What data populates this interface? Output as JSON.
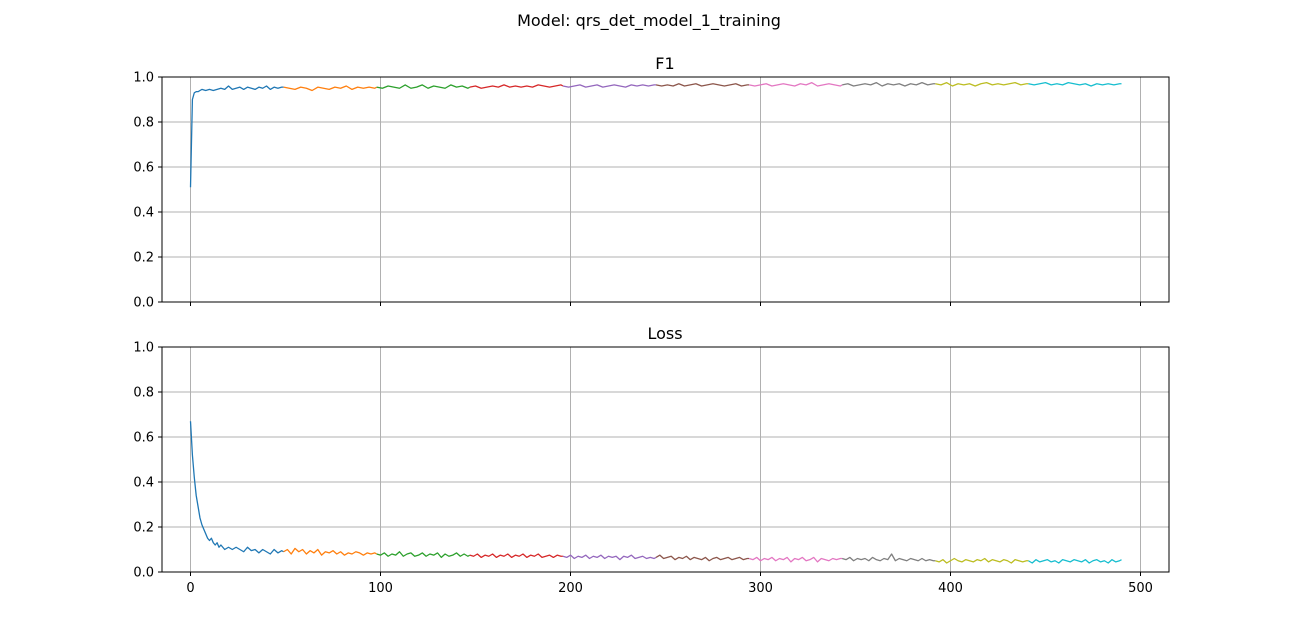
{
  "figure_title": "Model: qrs_det_model_1_training",
  "colors": [
    "#1f77b4",
    "#ff7f0e",
    "#2ca02c",
    "#d62728",
    "#9467bd",
    "#8c564b",
    "#e377c2",
    "#7f7f7f",
    "#bcbd22",
    "#17becf"
  ],
  "chart_data": [
    {
      "type": "line",
      "title": "F1",
      "xlabel": "",
      "ylabel": "",
      "xlim": [
        -15,
        515
      ],
      "ylim": [
        0,
        1
      ],
      "xticks": [
        0,
        100,
        200,
        300,
        400,
        500
      ],
      "yticks": [
        0.0,
        0.2,
        0.4,
        0.6,
        0.8,
        1.0
      ],
      "xtick_labels": [
        "",
        "",
        "",
        "",
        "",
        ""
      ],
      "ytick_labels": [
        "0.0",
        "0.2",
        "0.4",
        "0.6",
        "0.8",
        "1.0"
      ],
      "grid": true,
      "series": [
        {
          "x": [
            0,
            1,
            2,
            3,
            4,
            5,
            6,
            8,
            10,
            12,
            14,
            16,
            18,
            20,
            22,
            24,
            26,
            28,
            30,
            32,
            34,
            36,
            38,
            40,
            42,
            44,
            46,
            48,
            49
          ],
          "values": [
            0.51,
            0.9,
            0.93,
            0.935,
            0.935,
            0.94,
            0.945,
            0.94,
            0.945,
            0.94,
            0.945,
            0.95,
            0.945,
            0.96,
            0.945,
            0.95,
            0.955,
            0.945,
            0.955,
            0.95,
            0.945,
            0.955,
            0.95,
            0.96,
            0.945,
            0.955,
            0.95,
            0.955,
            0.955
          ]
        },
        {
          "x": [
            49,
            52,
            55,
            58,
            61,
            64,
            67,
            70,
            73,
            76,
            79,
            82,
            85,
            88,
            91,
            94,
            97,
            98
          ],
          "values": [
            0.955,
            0.95,
            0.945,
            0.955,
            0.95,
            0.94,
            0.955,
            0.95,
            0.945,
            0.955,
            0.95,
            0.96,
            0.945,
            0.955,
            0.95,
            0.955,
            0.95,
            0.955
          ]
        },
        {
          "x": [
            98,
            101,
            104,
            107,
            110,
            113,
            116,
            119,
            122,
            125,
            128,
            131,
            134,
            137,
            140,
            143,
            146,
            147
          ],
          "values": [
            0.955,
            0.95,
            0.96,
            0.955,
            0.95,
            0.965,
            0.95,
            0.955,
            0.965,
            0.95,
            0.96,
            0.955,
            0.95,
            0.965,
            0.955,
            0.96,
            0.95,
            0.955
          ]
        },
        {
          "x": [
            147,
            150,
            153,
            156,
            159,
            162,
            165,
            168,
            171,
            174,
            177,
            180,
            183,
            186,
            189,
            192,
            195,
            196
          ],
          "values": [
            0.955,
            0.96,
            0.95,
            0.955,
            0.96,
            0.955,
            0.965,
            0.955,
            0.96,
            0.955,
            0.96,
            0.955,
            0.965,
            0.96,
            0.955,
            0.96,
            0.965,
            0.96
          ]
        },
        {
          "x": [
            196,
            199,
            202,
            205,
            208,
            211,
            214,
            217,
            220,
            223,
            226,
            229,
            232,
            235,
            238,
            241,
            244,
            245
          ],
          "values": [
            0.96,
            0.955,
            0.96,
            0.965,
            0.955,
            0.96,
            0.965,
            0.955,
            0.96,
            0.965,
            0.96,
            0.955,
            0.965,
            0.96,
            0.965,
            0.96,
            0.965,
            0.965
          ]
        },
        {
          "x": [
            245,
            248,
            251,
            254,
            257,
            260,
            263,
            266,
            269,
            272,
            275,
            278,
            281,
            284,
            287,
            290,
            293,
            294
          ],
          "values": [
            0.965,
            0.96,
            0.965,
            0.96,
            0.97,
            0.96,
            0.965,
            0.97,
            0.96,
            0.965,
            0.97,
            0.965,
            0.96,
            0.965,
            0.97,
            0.96,
            0.965,
            0.965
          ]
        },
        {
          "x": [
            294,
            297,
            300,
            303,
            306,
            309,
            312,
            315,
            318,
            321,
            324,
            327,
            330,
            333,
            336,
            339,
            342,
            343
          ],
          "values": [
            0.965,
            0.96,
            0.965,
            0.97,
            0.96,
            0.965,
            0.97,
            0.965,
            0.96,
            0.97,
            0.965,
            0.975,
            0.96,
            0.965,
            0.97,
            0.965,
            0.96,
            0.965
          ]
        },
        {
          "x": [
            343,
            346,
            349,
            352,
            355,
            358,
            361,
            364,
            367,
            370,
            373,
            376,
            379,
            382,
            385,
            388,
            391,
            392
          ],
          "values": [
            0.965,
            0.97,
            0.96,
            0.965,
            0.97,
            0.965,
            0.975,
            0.96,
            0.97,
            0.965,
            0.97,
            0.96,
            0.97,
            0.965,
            0.975,
            0.965,
            0.97,
            0.97
          ]
        },
        {
          "x": [
            392,
            395,
            398,
            401,
            404,
            407,
            410,
            413,
            416,
            419,
            422,
            425,
            428,
            431,
            434,
            437,
            440,
            441
          ],
          "values": [
            0.97,
            0.965,
            0.975,
            0.96,
            0.97,
            0.965,
            0.97,
            0.96,
            0.97,
            0.975,
            0.965,
            0.97,
            0.965,
            0.97,
            0.975,
            0.965,
            0.97,
            0.97
          ]
        },
        {
          "x": [
            441,
            444,
            447,
            450,
            453,
            456,
            459,
            462,
            465,
            468,
            471,
            474,
            477,
            480,
            483,
            486,
            489,
            490
          ],
          "values": [
            0.97,
            0.965,
            0.97,
            0.975,
            0.965,
            0.97,
            0.965,
            0.975,
            0.97,
            0.965,
            0.97,
            0.96,
            0.97,
            0.965,
            0.97,
            0.965,
            0.97,
            0.97
          ]
        }
      ]
    },
    {
      "type": "line",
      "title": "Loss",
      "xlabel": "",
      "ylabel": "",
      "xlim": [
        -15,
        515
      ],
      "ylim": [
        0,
        1
      ],
      "xticks": [
        0,
        100,
        200,
        300,
        400,
        500
      ],
      "yticks": [
        0.0,
        0.2,
        0.4,
        0.6,
        0.8,
        1.0
      ],
      "xtick_labels": [
        "0",
        "100",
        "200",
        "300",
        "400",
        "500"
      ],
      "ytick_labels": [
        "0.0",
        "0.2",
        "0.4",
        "0.6",
        "0.8",
        "1.0"
      ],
      "grid": true,
      "series": [
        {
          "x": [
            0,
            1,
            2,
            3,
            4,
            5,
            6,
            7,
            8,
            9,
            10,
            11,
            12,
            13,
            14,
            15,
            16,
            18,
            20,
            22,
            24,
            26,
            28,
            30,
            32,
            34,
            36,
            38,
            40,
            42,
            44,
            46,
            48,
            49
          ],
          "values": [
            0.67,
            0.52,
            0.42,
            0.34,
            0.29,
            0.24,
            0.21,
            0.19,
            0.17,
            0.15,
            0.14,
            0.15,
            0.13,
            0.12,
            0.13,
            0.11,
            0.12,
            0.1,
            0.11,
            0.1,
            0.11,
            0.1,
            0.09,
            0.11,
            0.095,
            0.1,
            0.085,
            0.1,
            0.09,
            0.08,
            0.1,
            0.085,
            0.095,
            0.09
          ]
        },
        {
          "x": [
            49,
            51,
            53,
            55,
            57,
            59,
            61,
            63,
            65,
            67,
            69,
            71,
            73,
            75,
            77,
            79,
            81,
            83,
            85,
            87,
            89,
            91,
            93,
            95,
            97,
            98
          ],
          "values": [
            0.09,
            0.1,
            0.08,
            0.105,
            0.09,
            0.1,
            0.08,
            0.095,
            0.085,
            0.1,
            0.075,
            0.09,
            0.085,
            0.095,
            0.08,
            0.09,
            0.075,
            0.085,
            0.08,
            0.09,
            0.085,
            0.075,
            0.085,
            0.08,
            0.085,
            0.08
          ]
        },
        {
          "x": [
            98,
            100,
            102,
            104,
            106,
            108,
            110,
            112,
            114,
            116,
            118,
            120,
            122,
            124,
            126,
            128,
            130,
            132,
            134,
            136,
            138,
            140,
            142,
            144,
            146,
            147
          ],
          "values": [
            0.08,
            0.075,
            0.085,
            0.07,
            0.08,
            0.075,
            0.09,
            0.07,
            0.08,
            0.085,
            0.07,
            0.075,
            0.085,
            0.07,
            0.08,
            0.075,
            0.085,
            0.065,
            0.08,
            0.07,
            0.075,
            0.085,
            0.07,
            0.08,
            0.07,
            0.075
          ]
        },
        {
          "x": [
            147,
            149,
            151,
            153,
            155,
            157,
            159,
            161,
            163,
            165,
            167,
            169,
            171,
            173,
            175,
            177,
            179,
            181,
            183,
            185,
            187,
            189,
            191,
            193,
            195,
            196
          ],
          "values": [
            0.075,
            0.07,
            0.08,
            0.065,
            0.075,
            0.07,
            0.08,
            0.065,
            0.075,
            0.07,
            0.08,
            0.065,
            0.075,
            0.07,
            0.08,
            0.065,
            0.075,
            0.07,
            0.08,
            0.065,
            0.07,
            0.075,
            0.065,
            0.075,
            0.07,
            0.07
          ]
        },
        {
          "x": [
            196,
            198,
            200,
            202,
            204,
            206,
            208,
            210,
            212,
            214,
            216,
            218,
            220,
            222,
            224,
            226,
            228,
            230,
            232,
            234,
            236,
            238,
            240,
            242,
            244,
            245
          ],
          "values": [
            0.07,
            0.065,
            0.075,
            0.06,
            0.07,
            0.065,
            0.075,
            0.06,
            0.07,
            0.065,
            0.075,
            0.06,
            0.07,
            0.065,
            0.07,
            0.055,
            0.07,
            0.065,
            0.075,
            0.06,
            0.065,
            0.07,
            0.06,
            0.065,
            0.06,
            0.065
          ]
        },
        {
          "x": [
            245,
            247,
            249,
            251,
            253,
            255,
            257,
            259,
            261,
            263,
            265,
            267,
            269,
            271,
            273,
            275,
            277,
            279,
            281,
            283,
            285,
            287,
            289,
            291,
            293,
            294
          ],
          "values": [
            0.065,
            0.075,
            0.06,
            0.065,
            0.07,
            0.055,
            0.065,
            0.06,
            0.07,
            0.055,
            0.065,
            0.06,
            0.055,
            0.065,
            0.05,
            0.06,
            0.065,
            0.055,
            0.06,
            0.065,
            0.055,
            0.06,
            0.065,
            0.055,
            0.06,
            0.06
          ]
        },
        {
          "x": [
            294,
            296,
            298,
            300,
            302,
            304,
            306,
            308,
            310,
            312,
            314,
            316,
            318,
            320,
            322,
            324,
            326,
            328,
            330,
            332,
            334,
            336,
            338,
            340,
            342,
            343
          ],
          "values": [
            0.06,
            0.055,
            0.065,
            0.05,
            0.06,
            0.055,
            0.065,
            0.05,
            0.06,
            0.055,
            0.065,
            0.045,
            0.06,
            0.055,
            0.065,
            0.05,
            0.055,
            0.065,
            0.045,
            0.06,
            0.055,
            0.05,
            0.06,
            0.055,
            0.06,
            0.06
          ]
        },
        {
          "x": [
            343,
            345,
            347,
            349,
            351,
            353,
            355,
            357,
            359,
            361,
            363,
            365,
            367,
            369,
            371,
            373,
            375,
            377,
            379,
            381,
            383,
            385,
            387,
            389,
            391,
            392
          ],
          "values": [
            0.06,
            0.055,
            0.065,
            0.05,
            0.06,
            0.055,
            0.06,
            0.05,
            0.065,
            0.055,
            0.05,
            0.06,
            0.055,
            0.08,
            0.05,
            0.06,
            0.055,
            0.05,
            0.06,
            0.055,
            0.05,
            0.06,
            0.05,
            0.055,
            0.05,
            0.05
          ]
        },
        {
          "x": [
            392,
            394,
            396,
            398,
            400,
            402,
            404,
            406,
            408,
            410,
            412,
            414,
            416,
            418,
            420,
            422,
            424,
            426,
            428,
            430,
            432,
            434,
            436,
            438,
            440,
            441
          ],
          "values": [
            0.05,
            0.045,
            0.055,
            0.04,
            0.05,
            0.06,
            0.05,
            0.045,
            0.055,
            0.05,
            0.045,
            0.055,
            0.05,
            0.06,
            0.045,
            0.055,
            0.05,
            0.045,
            0.055,
            0.05,
            0.04,
            0.055,
            0.05,
            0.045,
            0.05,
            0.05
          ]
        },
        {
          "x": [
            441,
            443,
            445,
            447,
            449,
            451,
            453,
            455,
            457,
            459,
            461,
            463,
            465,
            467,
            469,
            471,
            473,
            475,
            477,
            479,
            481,
            483,
            485,
            487,
            489,
            490
          ],
          "values": [
            0.05,
            0.04,
            0.055,
            0.045,
            0.05,
            0.055,
            0.045,
            0.05,
            0.04,
            0.055,
            0.05,
            0.045,
            0.055,
            0.05,
            0.045,
            0.055,
            0.04,
            0.05,
            0.055,
            0.045,
            0.05,
            0.04,
            0.055,
            0.045,
            0.05,
            0.055
          ]
        }
      ]
    }
  ]
}
